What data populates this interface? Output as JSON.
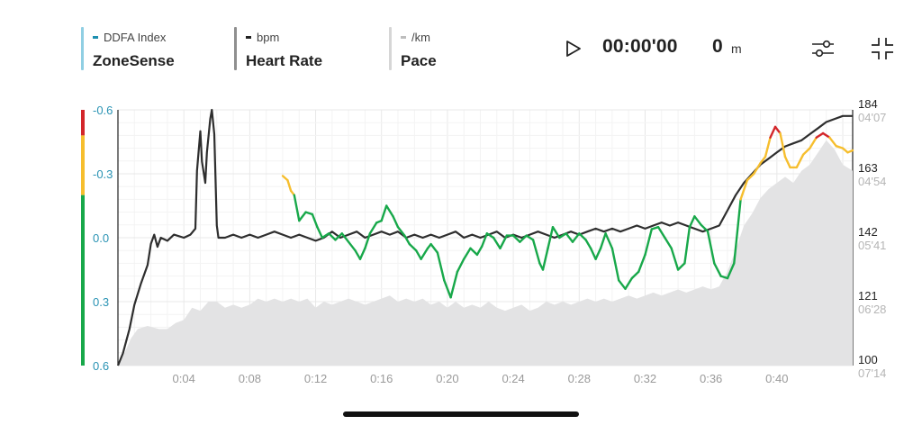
{
  "metrics": [
    {
      "name": "ZoneSense",
      "sub": "DDFA Index",
      "bar_color": "#90cfe3",
      "dash_color": "#1d8fb0"
    },
    {
      "name": "Heart Rate",
      "sub": "bpm",
      "bar_color": "#8f8f8f",
      "dash_color": "#222222"
    },
    {
      "name": "Pace",
      "sub": "/km",
      "bar_color": "#d6d6d6",
      "dash_color": "#bdbdbd"
    }
  ],
  "controls": {
    "play_icon": "play-icon",
    "timer": "00:00'00",
    "distance_value": "0",
    "distance_unit": "m",
    "settings_icon": "sliders-icon",
    "collapse_icon": "collapse-icon"
  },
  "chart_data": {
    "type": "line",
    "x_tick_labels": [
      "0:04",
      "0:08",
      "0:12",
      "0:16",
      "0:20",
      "0:24",
      "0:28",
      "0:32",
      "0:36",
      "0:40"
    ],
    "x_tick_minutes": [
      4,
      8,
      12,
      16,
      20,
      24,
      28,
      32,
      36,
      40
    ],
    "x_range_minutes": [
      0,
      44.6
    ],
    "left_axis": {
      "label": "DDFA Index",
      "ticks": [
        "-0.6",
        "-0.3",
        "0.0",
        "0.3",
        "0.6"
      ],
      "tick_values": [
        -0.6,
        -0.3,
        0.0,
        0.3,
        0.6
      ],
      "range": [
        -0.6,
        0.6
      ],
      "inverted": true
    },
    "hr_axis": {
      "ticks": [
        "184",
        "163",
        "142",
        "121",
        "100"
      ],
      "tick_values": [
        184,
        163,
        142,
        121,
        100
      ],
      "range": [
        100,
        184
      ]
    },
    "pace_axis": {
      "ticks": [
        "04'07",
        "04'54",
        "05'41",
        "06'28",
        "07'14"
      ]
    },
    "zone_colors": {
      "red": "#d3262a",
      "yellow": "#f6be2e",
      "green": "#18a84a"
    },
    "zone_bands": [
      {
        "color": "red",
        "from": -0.6,
        "to": -0.48
      },
      {
        "color": "yellow",
        "from": -0.48,
        "to": -0.2
      },
      {
        "color": "green",
        "from": -0.2,
        "to": 0.6
      }
    ],
    "series": [
      {
        "name": "Heart Rate",
        "color": "#2e2e2e",
        "points": [
          [
            0,
            100
          ],
          [
            0.3,
            104
          ],
          [
            0.7,
            112
          ],
          [
            1.0,
            120
          ],
          [
            1.4,
            127
          ],
          [
            1.8,
            133
          ],
          [
            2.0,
            140
          ],
          [
            2.2,
            143
          ],
          [
            2.4,
            139
          ],
          [
            2.6,
            142
          ],
          [
            3.0,
            141
          ],
          [
            3.4,
            143
          ],
          [
            4.0,
            142
          ],
          [
            4.4,
            143
          ],
          [
            4.7,
            145
          ],
          [
            4.8,
            164
          ],
          [
            5.0,
            177
          ],
          [
            5.1,
            167
          ],
          [
            5.3,
            160
          ],
          [
            5.4,
            170
          ],
          [
            5.6,
            181
          ],
          [
            5.7,
            184
          ],
          [
            5.85,
            176
          ],
          [
            6.0,
            146
          ],
          [
            6.1,
            142
          ],
          [
            6.5,
            142
          ],
          [
            7.0,
            143
          ],
          [
            7.5,
            142
          ],
          [
            8.0,
            143
          ],
          [
            8.5,
            142
          ],
          [
            9.0,
            143
          ],
          [
            9.5,
            144
          ],
          [
            10.0,
            143
          ],
          [
            10.5,
            142
          ],
          [
            11.0,
            143
          ],
          [
            11.5,
            142
          ],
          [
            12.0,
            141
          ],
          [
            12.5,
            142
          ],
          [
            13.0,
            144
          ],
          [
            13.5,
            142
          ],
          [
            14.0,
            143
          ],
          [
            14.5,
            144
          ],
          [
            15.0,
            142
          ],
          [
            15.5,
            143
          ],
          [
            16.0,
            144
          ],
          [
            16.5,
            143
          ],
          [
            17.0,
            144
          ],
          [
            17.5,
            142
          ],
          [
            18.0,
            143
          ],
          [
            18.5,
            142
          ],
          [
            19.0,
            143
          ],
          [
            19.5,
            142
          ],
          [
            20.0,
            143
          ],
          [
            20.5,
            144
          ],
          [
            21.0,
            142
          ],
          [
            21.5,
            143
          ],
          [
            22.0,
            142
          ],
          [
            22.5,
            143
          ],
          [
            23.0,
            144
          ],
          [
            23.5,
            142
          ],
          [
            24.0,
            143
          ],
          [
            24.5,
            142
          ],
          [
            25.0,
            143
          ],
          [
            25.5,
            144
          ],
          [
            26.0,
            143
          ],
          [
            26.5,
            142
          ],
          [
            27.0,
            143
          ],
          [
            27.5,
            144
          ],
          [
            28.0,
            143
          ],
          [
            28.5,
            144
          ],
          [
            29.0,
            145
          ],
          [
            29.5,
            144
          ],
          [
            30.0,
            145
          ],
          [
            30.5,
            144
          ],
          [
            31.0,
            145
          ],
          [
            31.5,
            146
          ],
          [
            32.0,
            145
          ],
          [
            32.5,
            146
          ],
          [
            33.0,
            147
          ],
          [
            33.5,
            146
          ],
          [
            34.0,
            147
          ],
          [
            34.5,
            146
          ],
          [
            35.0,
            145
          ],
          [
            35.5,
            144
          ],
          [
            36.0,
            145
          ],
          [
            36.5,
            146
          ],
          [
            37.0,
            151
          ],
          [
            37.5,
            156
          ],
          [
            38.0,
            160
          ],
          [
            38.5,
            163
          ],
          [
            39.0,
            166
          ],
          [
            39.5,
            168
          ],
          [
            40.0,
            170
          ],
          [
            40.5,
            172
          ],
          [
            41.0,
            173
          ],
          [
            41.5,
            174
          ],
          [
            42.0,
            176
          ],
          [
            42.5,
            178
          ],
          [
            43.0,
            180
          ],
          [
            43.5,
            181
          ],
          [
            44.0,
            182
          ],
          [
            44.6,
            182
          ]
        ]
      },
      {
        "name": "ZoneSense",
        "points": [
          [
            10.0,
            -0.29
          ],
          [
            10.3,
            -0.27
          ],
          [
            10.5,
            -0.22
          ],
          [
            10.7,
            -0.2
          ],
          [
            11.0,
            -0.08
          ],
          [
            11.4,
            -0.12
          ],
          [
            11.8,
            -0.11
          ],
          [
            12.1,
            -0.05
          ],
          [
            12.4,
            0.0
          ],
          [
            12.8,
            -0.02
          ],
          [
            13.2,
            0.01
          ],
          [
            13.6,
            -0.02
          ],
          [
            14.0,
            0.02
          ],
          [
            14.4,
            0.06
          ],
          [
            14.7,
            0.1
          ],
          [
            15.0,
            0.05
          ],
          [
            15.3,
            -0.02
          ],
          [
            15.7,
            -0.07
          ],
          [
            16.0,
            -0.08
          ],
          [
            16.3,
            -0.15
          ],
          [
            16.7,
            -0.1
          ],
          [
            17.0,
            -0.05
          ],
          [
            17.4,
            -0.01
          ],
          [
            17.7,
            0.03
          ],
          [
            18.1,
            0.06
          ],
          [
            18.4,
            0.1
          ],
          [
            18.8,
            0.05
          ],
          [
            19.0,
            0.03
          ],
          [
            19.4,
            0.07
          ],
          [
            19.8,
            0.2
          ],
          [
            20.2,
            0.28
          ],
          [
            20.6,
            0.16
          ],
          [
            21.0,
            0.1
          ],
          [
            21.4,
            0.05
          ],
          [
            21.8,
            0.08
          ],
          [
            22.1,
            0.04
          ],
          [
            22.4,
            -0.02
          ],
          [
            22.8,
            0.0
          ],
          [
            23.2,
            0.05
          ],
          [
            23.6,
            -0.01
          ],
          [
            24.0,
            -0.01
          ],
          [
            24.4,
            0.02
          ],
          [
            24.8,
            -0.01
          ],
          [
            25.2,
            0.01
          ],
          [
            25.6,
            0.12
          ],
          [
            25.8,
            0.15
          ],
          [
            26.1,
            0.05
          ],
          [
            26.4,
            -0.05
          ],
          [
            26.8,
            0.0
          ],
          [
            27.2,
            -0.02
          ],
          [
            27.6,
            0.02
          ],
          [
            28.0,
            -0.02
          ],
          [
            28.4,
            0.01
          ],
          [
            28.7,
            0.05
          ],
          [
            29.0,
            0.1
          ],
          [
            29.3,
            0.05
          ],
          [
            29.6,
            -0.02
          ],
          [
            30.0,
            0.05
          ],
          [
            30.4,
            0.2
          ],
          [
            30.8,
            0.24
          ],
          [
            31.2,
            0.19
          ],
          [
            31.6,
            0.16
          ],
          [
            32.0,
            0.08
          ],
          [
            32.4,
            -0.04
          ],
          [
            32.8,
            -0.05
          ],
          [
            33.2,
            0.0
          ],
          [
            33.6,
            0.05
          ],
          [
            34.0,
            0.15
          ],
          [
            34.4,
            0.12
          ],
          [
            34.7,
            -0.05
          ],
          [
            35.0,
            -0.1
          ],
          [
            35.4,
            -0.06
          ],
          [
            35.8,
            -0.03
          ],
          [
            36.2,
            0.12
          ],
          [
            36.6,
            0.18
          ],
          [
            37.0,
            0.19
          ],
          [
            37.4,
            0.12
          ],
          [
            37.8,
            -0.18
          ],
          [
            38.2,
            -0.27
          ],
          [
            38.6,
            -0.3
          ],
          [
            39.0,
            -0.35
          ],
          [
            39.3,
            -0.38
          ],
          [
            39.6,
            -0.47
          ],
          [
            39.9,
            -0.52
          ],
          [
            40.2,
            -0.49
          ],
          [
            40.5,
            -0.38
          ],
          [
            40.8,
            -0.33
          ],
          [
            41.2,
            -0.33
          ],
          [
            41.6,
            -0.39
          ],
          [
            42.0,
            -0.42
          ],
          [
            42.4,
            -0.47
          ],
          [
            42.8,
            -0.49
          ],
          [
            43.2,
            -0.47
          ],
          [
            43.6,
            -0.43
          ],
          [
            44.0,
            -0.42
          ],
          [
            44.3,
            -0.4
          ],
          [
            44.6,
            -0.41
          ]
        ]
      },
      {
        "name": "Pace",
        "color": "#e3e3e4",
        "points": [
          [
            0,
            100
          ],
          [
            0.3,
            103
          ],
          [
            0.8,
            109
          ],
          [
            1.2,
            112
          ],
          [
            1.8,
            113
          ],
          [
            2.5,
            112
          ],
          [
            3.0,
            112
          ],
          [
            3.5,
            114
          ],
          [
            4.0,
            115
          ],
          [
            4.5,
            119
          ],
          [
            5.0,
            118
          ],
          [
            5.5,
            121
          ],
          [
            6.0,
            121
          ],
          [
            6.5,
            119
          ],
          [
            7.0,
            120
          ],
          [
            7.5,
            119
          ],
          [
            8.0,
            120
          ],
          [
            8.5,
            122
          ],
          [
            9.0,
            121
          ],
          [
            9.5,
            122
          ],
          [
            10.0,
            121
          ],
          [
            10.5,
            122
          ],
          [
            11.0,
            121
          ],
          [
            11.5,
            122
          ],
          [
            12.0,
            119
          ],
          [
            12.5,
            121
          ],
          [
            13.0,
            120
          ],
          [
            13.5,
            121
          ],
          [
            14.0,
            122
          ],
          [
            14.5,
            121
          ],
          [
            15.0,
            120
          ],
          [
            15.5,
            121
          ],
          [
            16.0,
            122
          ],
          [
            16.5,
            123
          ],
          [
            17.0,
            121
          ],
          [
            17.5,
            122
          ],
          [
            18.0,
            121
          ],
          [
            18.5,
            122
          ],
          [
            19.0,
            120
          ],
          [
            19.5,
            121
          ],
          [
            20.0,
            119
          ],
          [
            20.5,
            121
          ],
          [
            21.0,
            119
          ],
          [
            21.5,
            120
          ],
          [
            22.0,
            119
          ],
          [
            22.5,
            121
          ],
          [
            23.0,
            119
          ],
          [
            23.5,
            118
          ],
          [
            24.0,
            119
          ],
          [
            24.5,
            120
          ],
          [
            25.0,
            118
          ],
          [
            25.5,
            119
          ],
          [
            26.0,
            121
          ],
          [
            26.5,
            120
          ],
          [
            27.0,
            121
          ],
          [
            27.5,
            120
          ],
          [
            28.0,
            121
          ],
          [
            28.5,
            122
          ],
          [
            29.0,
            121
          ],
          [
            29.5,
            122
          ],
          [
            30.0,
            121
          ],
          [
            30.5,
            122
          ],
          [
            31.0,
            123
          ],
          [
            31.5,
            122
          ],
          [
            32.0,
            123
          ],
          [
            32.5,
            124
          ],
          [
            33.0,
            123
          ],
          [
            33.5,
            124
          ],
          [
            34.0,
            125
          ],
          [
            34.5,
            124
          ],
          [
            35.0,
            125
          ],
          [
            35.5,
            126
          ],
          [
            36.0,
            125
          ],
          [
            36.5,
            126
          ],
          [
            37.0,
            131
          ],
          [
            37.5,
            138
          ],
          [
            38.0,
            146
          ],
          [
            38.5,
            150
          ],
          [
            39.0,
            155
          ],
          [
            39.5,
            158
          ],
          [
            40.0,
            160
          ],
          [
            40.5,
            162
          ],
          [
            41.0,
            160
          ],
          [
            41.5,
            164
          ],
          [
            42.0,
            166
          ],
          [
            42.5,
            170
          ],
          [
            43.0,
            174
          ],
          [
            43.5,
            171
          ],
          [
            44.0,
            166
          ],
          [
            44.6,
            164
          ]
        ]
      }
    ]
  }
}
